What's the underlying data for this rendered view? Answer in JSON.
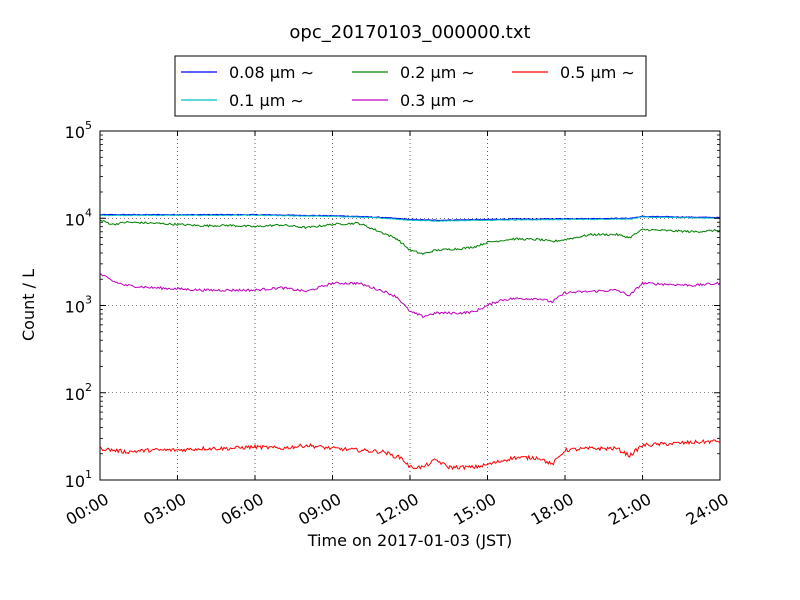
{
  "chart_data": {
    "type": "line",
    "title": "opc_20170103_000000.txt",
    "xlabel": "Time on 2017-01-03 (JST)",
    "ylabel": "Count / L",
    "yscale": "log",
    "xlim": [
      "00:00",
      "24:00"
    ],
    "ylim": [
      10,
      100000
    ],
    "x_ticks": [
      "00:00",
      "03:00",
      "06:00",
      "09:00",
      "12:00",
      "15:00",
      "18:00",
      "21:00",
      "24:00"
    ],
    "y_ticks": [
      {
        "base": "10",
        "exp": "1"
      },
      {
        "base": "10",
        "exp": "2"
      },
      {
        "base": "10",
        "exp": "3"
      },
      {
        "base": "10",
        "exp": "4"
      },
      {
        "base": "10",
        "exp": "5"
      }
    ],
    "grid": true,
    "legend_position": "top-center",
    "series": [
      {
        "name": "0.08 μm ∼",
        "color": "#0000ff",
        "x": [
          "00:00",
          "02:00",
          "04:00",
          "06:00",
          "08:00",
          "09:00",
          "10:00",
          "11:00",
          "12:00",
          "13:00",
          "14:00",
          "15:00",
          "16:00",
          "17:00",
          "18:00",
          "19:00",
          "20:00",
          "20:30",
          "21:00",
          "22:00",
          "23:00",
          "24:00"
        ],
        "values": [
          11000,
          11000,
          11000,
          11000,
          10800,
          10700,
          10500,
          10200,
          9700,
          9500,
          9600,
          9700,
          9800,
          9800,
          9900,
          9900,
          10000,
          10000,
          10500,
          10400,
          10300,
          10200
        ]
      },
      {
        "name": "0.1 μm ∼",
        "color": "#00bfbf",
        "x": [
          "00:00",
          "02:00",
          "04:00",
          "06:00",
          "08:00",
          "09:00",
          "10:00",
          "11:00",
          "12:00",
          "13:00",
          "14:00",
          "15:00",
          "16:00",
          "17:00",
          "18:00",
          "19:00",
          "20:00",
          "20:30",
          "21:00",
          "22:00",
          "23:00",
          "24:00"
        ],
        "values": [
          10800,
          10800,
          10800,
          10800,
          10600,
          10500,
          10300,
          10000,
          9500,
          9300,
          9400,
          9500,
          9600,
          9600,
          9700,
          9700,
          9800,
          9800,
          10300,
          10200,
          10100,
          10000
        ]
      },
      {
        "name": "0.2 μm ∼",
        "color": "#008000",
        "x": [
          "00:00",
          "00:30",
          "01:00",
          "02:00",
          "03:00",
          "04:00",
          "05:00",
          "06:00",
          "07:00",
          "08:00",
          "09:00",
          "10:00",
          "11:00",
          "11:30",
          "12:00",
          "12:30",
          "13:00",
          "13:30",
          "14:00",
          "14:30",
          "15:00",
          "16:00",
          "17:00",
          "17:30",
          "18:00",
          "19:00",
          "20:00",
          "20:30",
          "21:00",
          "22:00",
          "23:00",
          "24:00"
        ],
        "values": [
          9500,
          8500,
          9000,
          8800,
          8500,
          8200,
          8300,
          8000,
          8400,
          7800,
          8500,
          8800,
          6700,
          5800,
          4300,
          3900,
          4300,
          4400,
          4500,
          4700,
          5300,
          5800,
          5700,
          5400,
          5700,
          6500,
          6500,
          6000,
          7400,
          7200,
          7000,
          7300
        ]
      },
      {
        "name": "0.3 μm ∼",
        "color": "#bf00bf",
        "x": [
          "00:00",
          "00:30",
          "01:00",
          "02:00",
          "03:00",
          "04:00",
          "05:00",
          "06:00",
          "07:00",
          "08:00",
          "09:00",
          "10:00",
          "11:00",
          "11:30",
          "12:00",
          "12:30",
          "13:00",
          "14:00",
          "14:30",
          "15:00",
          "15:30",
          "16:00",
          "17:00",
          "17:30",
          "18:00",
          "19:00",
          "20:00",
          "20:30",
          "21:00",
          "22:00",
          "23:00",
          "24:00"
        ],
        "values": [
          2300,
          1900,
          1700,
          1600,
          1550,
          1500,
          1500,
          1500,
          1600,
          1450,
          1800,
          1800,
          1450,
          1250,
          850,
          750,
          820,
          820,
          850,
          1000,
          1150,
          1200,
          1200,
          1100,
          1400,
          1450,
          1500,
          1300,
          1800,
          1750,
          1700,
          1800
        ]
      },
      {
        "name": "0.5 μm ∼",
        "color": "#ff0000",
        "x": [
          "00:00",
          "01:00",
          "02:00",
          "03:00",
          "04:00",
          "05:00",
          "06:00",
          "07:00",
          "08:00",
          "09:00",
          "10:00",
          "11:00",
          "11:20",
          "11:40",
          "12:00",
          "12:30",
          "13:00",
          "13:30",
          "14:00",
          "14:30",
          "15:00",
          "16:00",
          "17:00",
          "17:30",
          "18:00",
          "19:00",
          "20:00",
          "20:30",
          "21:00",
          "22:00",
          "23:00",
          "24:00"
        ],
        "values": [
          23,
          21,
          22,
          22,
          23,
          23,
          24,
          23,
          25,
          23,
          22,
          21,
          19,
          18,
          14,
          14,
          17,
          14,
          14,
          14,
          15,
          18,
          18,
          15,
          22,
          23,
          23,
          19,
          25,
          26,
          27,
          28
        ]
      }
    ]
  }
}
